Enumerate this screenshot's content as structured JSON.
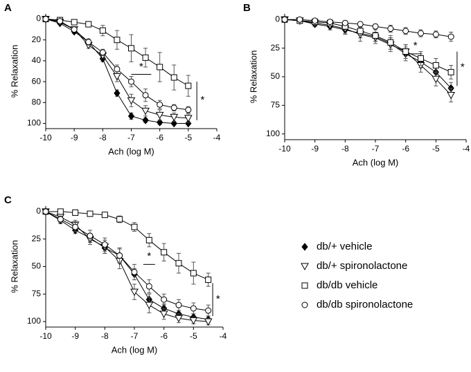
{
  "chart_data": [
    {
      "type": "line",
      "label": "A",
      "x_label": "Ach (log M)",
      "y_label": "% Relaxation",
      "y_inverted": true,
      "x": [
        -10,
        -9.5,
        -9,
        -8.5,
        -8,
        -7.5,
        -7,
        -6.5,
        -6,
        -5.5,
        -5
      ],
      "xlim": [
        -10,
        -4
      ],
      "xticks": [
        -10,
        -9,
        -8,
        -7,
        -6,
        -5,
        -4
      ],
      "ylim": [
        -5,
        105
      ],
      "yticks": [
        0,
        20,
        40,
        60,
        80,
        100
      ],
      "significance": [
        "*",
        "*"
      ],
      "series": [
        {
          "name": "db/+ vehicle",
          "marker": "diamond",
          "color": "#000000",
          "values": [
            0,
            4,
            12,
            22,
            38,
            71,
            93,
            97,
            99,
            100,
            100
          ],
          "errors": [
            0,
            1,
            2,
            2,
            3,
            3,
            3,
            2,
            2,
            1,
            1
          ]
        },
        {
          "name": "db/+ spironolactone",
          "marker": "triangle",
          "color": "#000000",
          "values": [
            0,
            3,
            10,
            25,
            35,
            55,
            78,
            88,
            92,
            94,
            95
          ],
          "errors": [
            0,
            1,
            2,
            3,
            3,
            5,
            6,
            5,
            5,
            4,
            4
          ]
        },
        {
          "name": "db/db vehicle",
          "marker": "square",
          "color": "#000000",
          "values": [
            0,
            1,
            3,
            5,
            11,
            20,
            28,
            37,
            46,
            56,
            64
          ],
          "errors": [
            1,
            1,
            2,
            2,
            5,
            9,
            13,
            9,
            14,
            12,
            10
          ]
        },
        {
          "name": "db/db spironolactone",
          "marker": "circle",
          "color": "#000000",
          "values": [
            0,
            2,
            10,
            22,
            32,
            48,
            60,
            73,
            82,
            85,
            87
          ],
          "errors": [
            0,
            1,
            2,
            3,
            3,
            4,
            5,
            6,
            4,
            3,
            3
          ]
        }
      ]
    },
    {
      "type": "line",
      "label": "B",
      "x_label": "Ach (log M)",
      "y_label": "% Relaxation",
      "y_inverted": true,
      "x": [
        -10,
        -9.5,
        -9,
        -8.5,
        -8,
        -7.5,
        -7,
        -6.5,
        -6,
        -5.5,
        -5,
        -4.5
      ],
      "xlim": [
        -10,
        -4
      ],
      "xticks": [
        -10,
        -9,
        -8,
        -7,
        -6,
        -5,
        -4
      ],
      "ylim": [
        -5,
        105
      ],
      "yticks": [
        0,
        25,
        50,
        75,
        100
      ],
      "significance": [
        "*",
        "*"
      ],
      "series": [
        {
          "name": "db/+ vehicle",
          "marker": "diamond",
          "color": "#000000",
          "values": [
            0,
            1,
            4,
            6,
            9,
            12,
            15,
            21,
            30,
            37,
            46,
            60
          ],
          "errors": [
            0,
            1,
            2,
            3,
            3,
            4,
            4,
            5,
            6,
            5,
            5,
            5
          ]
        },
        {
          "name": "db/+ spironolactone",
          "marker": "triangle",
          "color": "#000000",
          "values": [
            0,
            1,
            3,
            5,
            8,
            13,
            16,
            22,
            28,
            40,
            52,
            66
          ],
          "errors": [
            0,
            2,
            3,
            4,
            5,
            6,
            5,
            6,
            6,
            6,
            6,
            6
          ]
        },
        {
          "name": "db/db vehicle",
          "marker": "square",
          "color": "#000000",
          "values": [
            0,
            1,
            2,
            3,
            6,
            10,
            14,
            20,
            28,
            34,
            40,
            46
          ],
          "errors": [
            0,
            1,
            1,
            2,
            3,
            4,
            5,
            6,
            6,
            6,
            6,
            6
          ]
        },
        {
          "name": "db/db spironolactone",
          "marker": "circle",
          "color": "#000000",
          "values": [
            0,
            0,
            1,
            2,
            3,
            4,
            6,
            8,
            10,
            12,
            13,
            15
          ],
          "errors": [
            0,
            1,
            1,
            1,
            2,
            2,
            2,
            3,
            3,
            3,
            3,
            4
          ]
        }
      ]
    },
    {
      "type": "line",
      "label": "C",
      "x_label": "Ach (log M)",
      "y_label": "% Relaxation",
      "y_inverted": true,
      "x": [
        -10,
        -9.5,
        -9,
        -8.5,
        -8,
        -7.5,
        -7,
        -6.5,
        -6,
        -5.5,
        -5,
        -4.5
      ],
      "xlim": [
        -10,
        -4
      ],
      "xticks": [
        -10,
        -9,
        -8,
        -7,
        -6,
        -5,
        -4
      ],
      "ylim": [
        -5,
        105
      ],
      "yticks": [
        0,
        25,
        50,
        75,
        100
      ],
      "significance": [
        "*",
        "*"
      ],
      "series": [
        {
          "name": "db/+ vehicle",
          "marker": "diamond",
          "color": "#000000",
          "values": [
            0,
            8,
            17,
            24,
            33,
            40,
            57,
            80,
            88,
            93,
            96,
            98
          ],
          "errors": [
            0,
            3,
            3,
            4,
            5,
            6,
            5,
            5,
            4,
            3,
            3,
            3
          ]
        },
        {
          "name": "db/+ spironolactone",
          "marker": "triangle",
          "color": "#000000",
          "values": [
            0,
            5,
            12,
            25,
            32,
            45,
            73,
            85,
            93,
            97,
            99,
            100
          ],
          "errors": [
            0,
            3,
            4,
            5,
            6,
            7,
            7,
            7,
            5,
            4,
            3,
            3
          ]
        },
        {
          "name": "db/db vehicle",
          "marker": "square",
          "color": "#000000",
          "values": [
            0,
            0,
            1,
            2,
            3,
            7,
            14,
            26,
            37,
            47,
            56,
            62
          ],
          "errors": [
            0,
            1,
            1,
            2,
            2,
            3,
            4,
            6,
            8,
            9,
            10,
            6
          ]
        },
        {
          "name": "db/db spironolactone",
          "marker": "circle",
          "color": "#000000",
          "values": [
            0,
            7,
            14,
            22,
            30,
            40,
            55,
            68,
            80,
            85,
            88,
            90
          ],
          "errors": [
            0,
            3,
            4,
            5,
            6,
            7,
            7,
            6,
            5,
            5,
            5,
            5
          ]
        }
      ]
    }
  ]
}
